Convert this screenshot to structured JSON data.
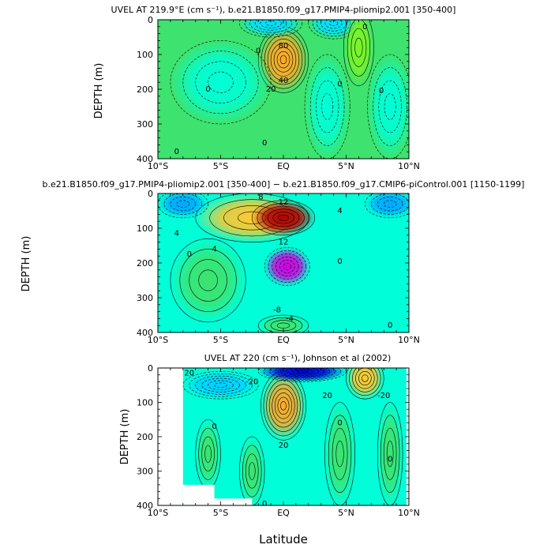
{
  "chart_data": [
    {
      "type": "heatmap",
      "title": "UVEL AT 219.9°E (cm s⁻¹), b.e21.B1850.f09_g17.PMIP4-pliomip2.001 [350-400]",
      "xlabel": "",
      "ylabel": "DEPTH (m)",
      "xlim": [
        -10,
        10
      ],
      "ylim": [
        400,
        0
      ],
      "xticks": [
        {
          "value": -10,
          "label": "10°S"
        },
        {
          "value": -5,
          "label": "5°S"
        },
        {
          "value": 0,
          "label": "EQ"
        },
        {
          "value": 5,
          "label": "5°N"
        },
        {
          "value": 10,
          "label": "10°N"
        }
      ],
      "yticks": [
        {
          "value": 0,
          "label": "0"
        },
        {
          "value": 100,
          "label": "100"
        },
        {
          "value": 200,
          "label": "200"
        },
        {
          "value": 300,
          "label": "300"
        },
        {
          "value": 400,
          "label": "400"
        }
      ],
      "background_color": "#3de36e",
      "features": [
        {
          "x": 0,
          "y": 115,
          "rx": 2.0,
          "ry": 95,
          "peak": 90,
          "color": "#ffaa28"
        },
        {
          "x": -1,
          "y": 10,
          "rx": 2.5,
          "ry": 40,
          "peak": -20,
          "color": "#00e0ff"
        },
        {
          "x": 4,
          "y": 10,
          "rx": 2.0,
          "ry": 45,
          "peak": -20,
          "color": "#00e0ff"
        },
        {
          "x": -5,
          "y": 180,
          "rx": 4.0,
          "ry": 120,
          "peak": -5,
          "color": "#00ffd8"
        },
        {
          "x": 3.5,
          "y": 250,
          "rx": 1.8,
          "ry": 150,
          "peak": -5,
          "color": "#00ffd8"
        },
        {
          "x": 8.5,
          "y": 250,
          "rx": 1.8,
          "ry": 150,
          "peak": -5,
          "color": "#00ffd8"
        },
        {
          "x": 6,
          "y": 80,
          "rx": 1.2,
          "ry": 110,
          "peak": 10,
          "color": "#7cf528"
        }
      ],
      "contour_labels": [
        {
          "x": 0,
          "y": 75,
          "text": "80"
        },
        {
          "x": 0,
          "y": 175,
          "text": "40"
        },
        {
          "x": -1.0,
          "y": 200,
          "text": "20"
        },
        {
          "x": -6,
          "y": 200,
          "text": "0"
        },
        {
          "x": -2,
          "y": 90,
          "text": "0"
        },
        {
          "x": 4.5,
          "y": 185,
          "text": "0"
        },
        {
          "x": -1.5,
          "y": 355,
          "text": "0"
        },
        {
          "x": -8.5,
          "y": 380,
          "text": "0"
        },
        {
          "x": 7.8,
          "y": 205,
          "text": "0"
        },
        {
          "x": 6.5,
          "y": 20,
          "text": "0"
        }
      ]
    },
    {
      "type": "heatmap",
      "title": "b.e21.B1850.f09_g17.PMIP4-pliomip2.001 [350-400] − b.e21.B1850.f09_g17.CMIP6-piControl.001 [1150-1199]",
      "xlabel": "",
      "ylabel": "DEPTH (m)",
      "xlim": [
        -10,
        10
      ],
      "ylim": [
        400,
        0
      ],
      "xticks": [
        {
          "value": -10,
          "label": "10°S"
        },
        {
          "value": -5,
          "label": "5°S"
        },
        {
          "value": 0,
          "label": "EQ"
        },
        {
          "value": 5,
          "label": "5°N"
        },
        {
          "value": 10,
          "label": "10°N"
        }
      ],
      "yticks": [
        {
          "value": 0,
          "label": "0"
        },
        {
          "value": 100,
          "label": "100"
        },
        {
          "value": 200,
          "label": "200"
        },
        {
          "value": 300,
          "label": "300"
        },
        {
          "value": 400,
          "label": "400"
        }
      ],
      "background_color": "#00ffd8",
      "features": [
        {
          "x": -2.5,
          "y": 70,
          "rx": 4.5,
          "ry": 70,
          "peak": 6,
          "color": "#ffc830"
        },
        {
          "x": 0,
          "y": 70,
          "rx": 2.5,
          "ry": 50,
          "peak": 16,
          "color": "#b40000"
        },
        {
          "x": 0.3,
          "y": 210,
          "rx": 1.8,
          "ry": 55,
          "peak": -12,
          "color": "#d000e0"
        },
        {
          "x": -8,
          "y": 30,
          "rx": 2.0,
          "ry": 40,
          "peak": -4,
          "color": "#00a8ff"
        },
        {
          "x": 8.5,
          "y": 30,
          "rx": 2.0,
          "ry": 40,
          "peak": -4,
          "color": "#00a8ff"
        },
        {
          "x": -6,
          "y": 250,
          "rx": 3.0,
          "ry": 120,
          "peak": 2,
          "color": "#3de36e"
        },
        {
          "x": 0,
          "y": 380,
          "rx": 2.0,
          "ry": 30,
          "peak": 2,
          "color": "#3de36e"
        }
      ],
      "contour_labels": [
        {
          "x": -1.8,
          "y": 10,
          "text": "8"
        },
        {
          "x": 0,
          "y": 25,
          "text": "12"
        },
        {
          "x": 4.5,
          "y": 50,
          "text": "4"
        },
        {
          "x": -8.5,
          "y": 115,
          "text": "4"
        },
        {
          "x": -5.5,
          "y": 160,
          "text": "4"
        },
        {
          "x": 0,
          "y": 140,
          "text": "12"
        },
        {
          "x": -0.5,
          "y": 335,
          "text": "-8"
        },
        {
          "x": 0.5,
          "y": 360,
          "text": "-4"
        },
        {
          "x": 4.5,
          "y": 195,
          "text": "0"
        },
        {
          "x": 8.5,
          "y": 380,
          "text": "0"
        },
        {
          "x": -7.5,
          "y": 175,
          "text": "0"
        }
      ]
    },
    {
      "type": "heatmap",
      "title": "UVEL AT 220 (cm s⁻¹), Johnson et al (2002)",
      "xlabel": "Latitude",
      "ylabel": "DEPTH (m)",
      "xlim": [
        -10,
        10
      ],
      "ylim": [
        400,
        0
      ],
      "xticks": [
        {
          "value": -10,
          "label": "10°S"
        },
        {
          "value": -5,
          "label": "5°S"
        },
        {
          "value": 0,
          "label": "EQ"
        },
        {
          "value": 5,
          "label": "5°N"
        },
        {
          "value": 10,
          "label": "10°N"
        }
      ],
      "yticks": [
        {
          "value": 0,
          "label": "0"
        },
        {
          "value": 100,
          "label": "100"
        },
        {
          "value": 200,
          "label": "200"
        },
        {
          "value": 300,
          "label": "300"
        },
        {
          "value": 400,
          "label": "400"
        }
      ],
      "background_color": "#00ffd8",
      "no_data_regions": [
        {
          "x0": -10,
          "x1": -8,
          "y0": 0,
          "y1": 400
        },
        {
          "x0": -8,
          "x1": -5.5,
          "y0": 340,
          "y1": 400
        },
        {
          "x0": -5.5,
          "x1": -2.5,
          "y0": 380,
          "y1": 400
        },
        {
          "x0": 9.8,
          "x1": 10,
          "y0": 0,
          "y1": 400
        }
      ],
      "features": [
        {
          "x": 0,
          "y": 110,
          "rx": 1.8,
          "ry": 100,
          "peak": 90,
          "color": "#ffaa28"
        },
        {
          "x": 1.5,
          "y": 10,
          "rx": 3.5,
          "ry": 30,
          "peak": -60,
          "color": "#0000e0"
        },
        {
          "x": -5,
          "y": 50,
          "rx": 3.0,
          "ry": 40,
          "peak": -20,
          "color": "#00d0ff"
        },
        {
          "x": 6.5,
          "y": 30,
          "rx": 1.5,
          "ry": 60,
          "peak": 30,
          "color": "#ffc830"
        },
        {
          "x": -2.5,
          "y": 300,
          "rx": 1.0,
          "ry": 100,
          "peak": 5,
          "color": "#3de36e"
        },
        {
          "x": 4.5,
          "y": 250,
          "rx": 1.2,
          "ry": 150,
          "peak": 5,
          "color": "#3de36e"
        },
        {
          "x": 8.5,
          "y": 250,
          "rx": 1.0,
          "ry": 150,
          "peak": 5,
          "color": "#3de36e"
        },
        {
          "x": -6,
          "y": 250,
          "rx": 1.0,
          "ry": 100,
          "peak": 5,
          "color": "#3de36e"
        }
      ],
      "contour_labels": [
        {
          "x": -7.5,
          "y": 15,
          "text": "20"
        },
        {
          "x": -2.5,
          "y": 40,
          "text": "-20"
        },
        {
          "x": 0,
          "y": 225,
          "text": "20"
        },
        {
          "x": 3.5,
          "y": 80,
          "text": "20"
        },
        {
          "x": 8,
          "y": 80,
          "text": "-20"
        },
        {
          "x": 8.5,
          "y": 265,
          "text": "0"
        },
        {
          "x": 4.5,
          "y": 160,
          "text": "0"
        },
        {
          "x": -5.5,
          "y": 170,
          "text": "0"
        },
        {
          "x": -1.5,
          "y": 395,
          "text": "0"
        }
      ]
    }
  ]
}
